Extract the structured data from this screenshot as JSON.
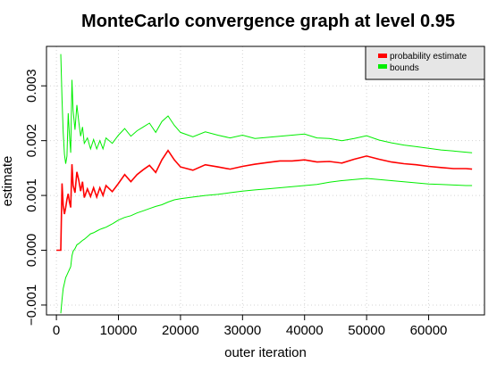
{
  "chart_data": {
    "type": "line",
    "title": "MonteCarlo convergence graph at level 0.95",
    "xlabel": "outer iteration",
    "ylabel": "estimate",
    "xlim": [
      -1600,
      69000
    ],
    "ylim": [
      -0.00118,
      0.00372
    ],
    "x_ticks": [
      0,
      10000,
      20000,
      30000,
      40000,
      50000,
      60000
    ],
    "x_tick_labels": [
      "0",
      "10000",
      "20000",
      "30000",
      "40000",
      "50000",
      "60000"
    ],
    "y_ticks": [
      -0.001,
      0.0,
      0.001,
      0.002,
      0.003
    ],
    "y_tick_labels": [
      "−0.001",
      "0.000",
      "0.001",
      "0.002",
      "0.003"
    ],
    "grid": true,
    "legend_position": "top-right",
    "series": [
      {
        "name": "probability estimate",
        "color": "#ff0000",
        "x": [
          0,
          700,
          900,
          1100,
          1300,
          1500,
          1700,
          1900,
          2100,
          2300,
          2500,
          2700,
          3000,
          3300,
          3600,
          3900,
          4200,
          4500,
          5000,
          5500,
          6000,
          6500,
          7000,
          7500,
          8000,
          9000,
          10000,
          11000,
          12000,
          13000,
          14000,
          15000,
          16000,
          17000,
          18000,
          19000,
          20000,
          22000,
          24000,
          26000,
          28000,
          30000,
          32000,
          34000,
          36000,
          38000,
          40000,
          42000,
          44000,
          46000,
          48000,
          50000,
          52000,
          54000,
          56000,
          58000,
          60000,
          62000,
          64000,
          66000,
          67000
        ],
        "values": [
          0.0,
          0.0,
          0.00122,
          0.00082,
          0.00066,
          0.00078,
          0.00093,
          0.00103,
          0.00088,
          0.00078,
          0.00157,
          0.00118,
          0.00105,
          0.00143,
          0.00128,
          0.00108,
          0.00125,
          0.00096,
          0.00112,
          0.00098,
          0.00114,
          0.00097,
          0.00114,
          0.001,
          0.00118,
          0.00107,
          0.00122,
          0.00138,
          0.00125,
          0.00138,
          0.00147,
          0.00155,
          0.00142,
          0.00165,
          0.00182,
          0.00165,
          0.00152,
          0.00146,
          0.00156,
          0.00152,
          0.00148,
          0.00153,
          0.00157,
          0.0016,
          0.00163,
          0.00163,
          0.00165,
          0.00161,
          0.00162,
          0.00159,
          0.00166,
          0.00172,
          0.00166,
          0.00161,
          0.00158,
          0.00156,
          0.00153,
          0.00151,
          0.00149,
          0.00149,
          0.00148
        ]
      },
      {
        "name": "bounds",
        "color": "#00ee00",
        "upper": {
          "x": [
            700,
            900,
            1100,
            1300,
            1500,
            1700,
            1900,
            2100,
            2300,
            2500,
            2700,
            3000,
            3300,
            3600,
            3900,
            4200,
            4500,
            5000,
            5500,
            6000,
            6500,
            7000,
            7500,
            8000,
            9000,
            10000,
            11000,
            12000,
            13000,
            14000,
            15000,
            16000,
            17000,
            18000,
            19000,
            20000,
            22000,
            24000,
            26000,
            28000,
            30000,
            32000,
            34000,
            36000,
            38000,
            40000,
            42000,
            44000,
            46000,
            48000,
            50000,
            52000,
            54000,
            56000,
            58000,
            60000,
            62000,
            64000,
            66000,
            67000
          ],
          "values": [
            0.00358,
            0.00275,
            0.00215,
            0.00175,
            0.00158,
            0.00172,
            0.0025,
            0.0021,
            0.00178,
            0.00311,
            0.00255,
            0.0022,
            0.00265,
            0.00235,
            0.00208,
            0.00225,
            0.00195,
            0.00205,
            0.00185,
            0.00202,
            0.00185,
            0.002,
            0.00185,
            0.00205,
            0.00195,
            0.0021,
            0.00222,
            0.00208,
            0.00218,
            0.00225,
            0.00232,
            0.00215,
            0.00235,
            0.00245,
            0.00228,
            0.00215,
            0.00207,
            0.00216,
            0.0021,
            0.00205,
            0.0021,
            0.00204,
            0.00206,
            0.00208,
            0.0021,
            0.00212,
            0.00205,
            0.00204,
            0.002,
            0.00204,
            0.00209,
            0.00201,
            0.00196,
            0.00192,
            0.00189,
            0.00186,
            0.00183,
            0.00181,
            0.00179,
            0.00178
          ]
        },
        "lower": {
          "x": [
            700,
            900,
            1100,
            1300,
            1500,
            1700,
            1900,
            2100,
            2300,
            2500,
            2700,
            3000,
            3300,
            3600,
            3900,
            4200,
            4500,
            5000,
            5500,
            6000,
            6500,
            7000,
            7500,
            8000,
            9000,
            10000,
            11000,
            12000,
            13000,
            14000,
            15000,
            16000,
            17000,
            18000,
            19000,
            20000,
            22000,
            24000,
            26000,
            28000,
            30000,
            32000,
            34000,
            36000,
            38000,
            40000,
            42000,
            44000,
            46000,
            48000,
            50000,
            52000,
            54000,
            56000,
            58000,
            60000,
            62000,
            64000,
            66000,
            67000
          ],
          "values": [
            -0.00115,
            -0.0009,
            -0.0007,
            -0.0006,
            -0.0005,
            -0.00045,
            -0.0004,
            -0.00035,
            -0.0003,
            -0.0001,
            -2e-05,
            3e-05,
            0.0001,
            0.00012,
            0.00015,
            0.00018,
            0.0002,
            0.00025,
            0.0003,
            0.00032,
            0.00035,
            0.00038,
            0.0004,
            0.00042,
            0.00048,
            0.00055,
            0.0006,
            0.00063,
            0.00068,
            0.00072,
            0.00076,
            0.0008,
            0.00083,
            0.00088,
            0.00092,
            0.00094,
            0.00097,
            0.001,
            0.00102,
            0.00105,
            0.00108,
            0.0011,
            0.00112,
            0.00114,
            0.00116,
            0.00118,
            0.0012,
            0.00124,
            0.00127,
            0.00129,
            0.00131,
            0.00129,
            0.00127,
            0.00125,
            0.00123,
            0.00121,
            0.0012,
            0.00119,
            0.00118,
            0.00118
          ]
        }
      }
    ]
  }
}
